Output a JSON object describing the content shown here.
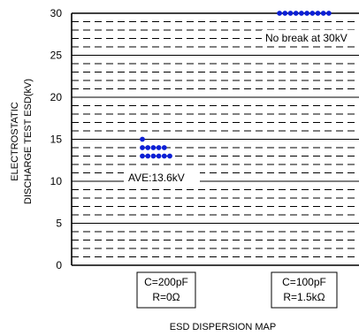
{
  "chart_data": {
    "type": "scatter",
    "title": "",
    "xlabel": "ESD DISPERSION MAP",
    "ylabel_lines": [
      "ELECTROSTATIC",
      "DISCHARGE TEST ESD(kV)"
    ],
    "ylim": [
      0,
      30
    ],
    "yticks": [
      0,
      5,
      10,
      15,
      20,
      25,
      30
    ],
    "grid": "horizontal solid every 5, dashed minor every 1",
    "categories": [
      {
        "lines": [
          "C=200pF",
          "R=0Ω"
        ]
      },
      {
        "lines": [
          "C=100pF",
          "R=1.5kΩ"
        ]
      }
    ],
    "series": [
      {
        "category": 0,
        "points": [
          {
            "y": 15,
            "count": 1
          },
          {
            "y": 14,
            "count": 5
          },
          {
            "y": 13,
            "count": 6
          }
        ]
      },
      {
        "category": 1,
        "points": [
          {
            "y": 30,
            "count": 10
          }
        ]
      }
    ],
    "annotations": {
      "average": "AVE:13.6kV",
      "no_break": "No break at 30kV"
    },
    "colors": {
      "points": "#0b1fd6",
      "axis": "#000000"
    }
  }
}
